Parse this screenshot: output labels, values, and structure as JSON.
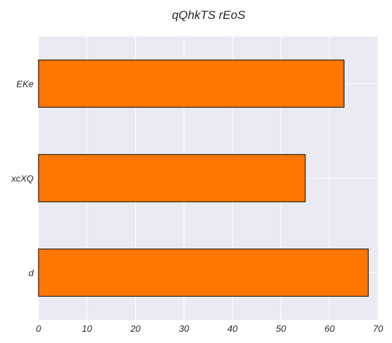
{
  "chart_data": {
    "type": "bar",
    "orientation": "horizontal",
    "title": "qQhkTS  rEoS",
    "xlabel": "",
    "ylabel": "",
    "categories": [
      "EKe",
      "xcXQ",
      "d"
    ],
    "values": [
      63,
      55,
      68
    ],
    "xlim": [
      0,
      70
    ],
    "xticks": [
      0,
      10,
      20,
      30,
      40,
      50,
      60,
      70
    ],
    "grid": true,
    "legend": null,
    "colors": {
      "bar": "#ff7700",
      "bar_edge": "#000000",
      "plot_background": "#eaeaf2",
      "grid": "#ffffff"
    }
  }
}
